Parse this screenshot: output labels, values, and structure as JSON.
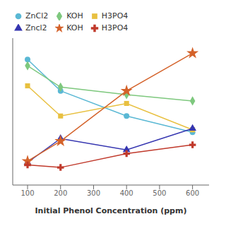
{
  "chart_data": {
    "type": "line",
    "x": [
      100,
      200,
      400,
      600
    ],
    "series": [
      {
        "name": "ZnCl2",
        "color": "#5ab8d4",
        "marker": "circle",
        "line_style": "solid",
        "values": [
          95,
          70,
          50,
          37
        ]
      },
      {
        "name": "KOH",
        "color": "#7ec87e",
        "marker": "diamond",
        "line_style": "solid",
        "values": [
          90,
          73,
          67,
          62
        ]
      },
      {
        "name": "H3PO4",
        "color": "#e8c040",
        "marker": "square",
        "line_style": "solid",
        "values": [
          74,
          50,
          60,
          39
        ]
      },
      {
        "name": "Zncl2",
        "color": "#3535b0",
        "marker": "triangle",
        "line_style": "solid",
        "values": [
          13,
          32,
          23,
          40
        ]
      },
      {
        "name": "KOH",
        "color": "#d4622a",
        "marker": "star",
        "line_style": "solid",
        "values": [
          14,
          30,
          70,
          100
        ]
      },
      {
        "name": "H3PO4",
        "color": "#c0392b",
        "marker": "plus",
        "line_style": "solid",
        "values": [
          11,
          9,
          20,
          27
        ]
      }
    ],
    "xlabel": "Initial Phenol Concentration (ppm)",
    "xlim": [
      55,
      650
    ],
    "ylim": [
      -5,
      112
    ],
    "xticks": [
      100,
      200,
      300,
      400,
      500,
      600
    ],
    "legend": "upper left",
    "tick_labels": "x",
    "grid": false
  }
}
